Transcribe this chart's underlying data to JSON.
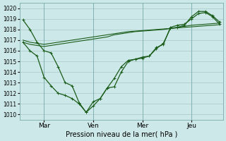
{
  "xlabel": "Pression niveau de la mer( hPa )",
  "bg_color": "#cde8e8",
  "grid_color": "#a8c8c8",
  "line_color": "#1a5c1a",
  "ylim": [
    1009.5,
    1020.5
  ],
  "xlim": [
    -0.5,
    28.5
  ],
  "yticks": [
    1010,
    1011,
    1012,
    1013,
    1014,
    1015,
    1016,
    1017,
    1018,
    1019,
    1020
  ],
  "xtick_positions": [
    3,
    10,
    17,
    24
  ],
  "xtick_labels": [
    "Mar",
    "Ven",
    "Mer",
    "Jeu"
  ],
  "vlines": [
    3,
    10,
    17,
    24
  ],
  "line1_x": [
    0,
    1,
    2,
    3,
    4,
    5,
    6,
    7,
    8,
    9,
    10,
    11,
    12,
    13,
    14,
    15,
    16,
    17,
    18,
    19,
    20,
    21,
    22,
    23,
    24,
    25,
    26,
    27,
    28
  ],
  "line1_y": [
    1017.0,
    1016.8,
    1016.7,
    1016.6,
    1016.7,
    1016.8,
    1016.9,
    1017.0,
    1017.1,
    1017.2,
    1017.3,
    1017.4,
    1017.5,
    1017.6,
    1017.7,
    1017.8,
    1017.85,
    1017.9,
    1017.95,
    1018.0,
    1018.05,
    1018.1,
    1018.15,
    1018.2,
    1018.25,
    1018.3,
    1018.35,
    1018.4,
    1018.45
  ],
  "line2_x": [
    0,
    1,
    2,
    3,
    4,
    5,
    6,
    7,
    8,
    9,
    10,
    11,
    12,
    13,
    14,
    15,
    16,
    17,
    18,
    19,
    20,
    21,
    22,
    23,
    24,
    25,
    26,
    27,
    28
  ],
  "line2_y": [
    1016.8,
    1016.6,
    1016.5,
    1016.4,
    1016.5,
    1016.6,
    1016.7,
    1016.8,
    1016.9,
    1017.0,
    1017.1,
    1017.2,
    1017.3,
    1017.5,
    1017.6,
    1017.7,
    1017.8,
    1017.85,
    1017.9,
    1017.95,
    1018.0,
    1018.1,
    1018.2,
    1018.3,
    1018.4,
    1018.45,
    1018.5,
    1018.55,
    1018.6
  ],
  "series_a_x": [
    0,
    1,
    2,
    3,
    4,
    5,
    6,
    7,
    8,
    9,
    10,
    11,
    12,
    13,
    14,
    15,
    16,
    17,
    18,
    19,
    20,
    21,
    22,
    23,
    24,
    25,
    26,
    27,
    28
  ],
  "series_a_y": [
    1018.9,
    1018.0,
    1016.8,
    1016.0,
    1015.8,
    1014.5,
    1013.0,
    1012.7,
    1011.1,
    1010.2,
    1010.8,
    1011.5,
    1012.5,
    1013.4,
    1014.5,
    1015.1,
    1015.2,
    1015.4,
    1015.5,
    1016.2,
    1016.7,
    1018.1,
    1018.2,
    1018.4,
    1019.2,
    1019.7,
    1019.7,
    1019.3,
    1018.7
  ],
  "series_b_x": [
    0,
    1,
    2,
    3,
    4,
    5,
    6,
    7,
    8,
    9,
    10,
    11,
    12,
    13,
    14,
    15,
    16,
    17,
    18,
    19,
    20,
    21,
    22,
    23,
    24,
    25,
    26,
    27,
    28
  ],
  "series_b_y": [
    1016.8,
    1016.0,
    1015.5,
    1013.5,
    1012.7,
    1012.0,
    1011.8,
    1011.5,
    1011.0,
    1010.2,
    1011.2,
    1011.5,
    1012.5,
    1012.6,
    1014.0,
    1015.0,
    1015.2,
    1015.3,
    1015.5,
    1016.3,
    1016.6,
    1018.2,
    1018.4,
    1018.5,
    1019.0,
    1019.5,
    1019.6,
    1019.2,
    1018.5
  ],
  "marker": "+"
}
